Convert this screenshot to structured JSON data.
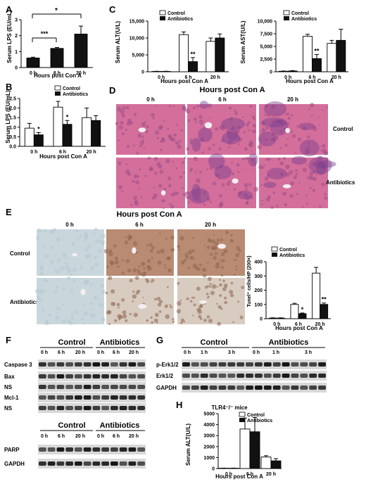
{
  "panels": {
    "A": {
      "letter": "A",
      "ylabel": "Serum LPS (EU/mL)",
      "xlabel": "Hours post Con A",
      "ticks": [
        "0",
        "1",
        "2",
        "3"
      ],
      "sig_far": "*",
      "sig_near": "***"
    },
    "B": {
      "letter": "B",
      "ylabel": "Serum LPS (EU/mL)",
      "xlabel": "Hours post Con A",
      "ticks": [
        "0.0",
        "0.5",
        "1.0",
        "1.5",
        "2.0",
        "2.5"
      ],
      "legend": [
        "Control",
        "Antibiotics"
      ]
    },
    "C1": {
      "letter": "C",
      "ylabel": "Serum ALT(U/L)",
      "xlabel": "Hours post Con A",
      "ticks": [
        "0",
        "5,000",
        "10,000",
        "15,000"
      ],
      "legend": [
        "Control",
        "Antibiotics"
      ]
    },
    "C2": {
      "ylabel": "Serum AST(U/L)",
      "xlabel": "Hours post Con A",
      "ticks": [
        "0",
        "2,500",
        "5,000",
        "7,500",
        "10,000"
      ],
      "legend": [
        "Control",
        "Antibiotics"
      ]
    },
    "D": {
      "letter": "D",
      "title": "Hours post Con A",
      "cols": [
        "0 h",
        "6 h",
        "20 h"
      ],
      "rows": [
        "Control",
        "Antibiotics"
      ]
    },
    "E": {
      "letter": "E",
      "title": "Hours post Con A",
      "cols": [
        "0 h",
        "6 h",
        "20 h"
      ],
      "rows": [
        "Control",
        "Antibiotics"
      ]
    },
    "E_chart": {
      "ylabel": "Tunel⁺ cells/HP (200×)",
      "xlabel": "Hours post Con A",
      "ticks": [
        "0",
        "100",
        "200",
        "300",
        "400"
      ],
      "legend": [
        "Control",
        "Antibiotics"
      ]
    },
    "F": {
      "letter": "F",
      "groups": [
        "Control",
        "Antibiotics"
      ],
      "times": [
        "0 h",
        "6 h",
        "20 h"
      ],
      "bands1": [
        "Caspase 3",
        "Bax",
        "NS",
        "Mcl-1",
        "NS"
      ],
      "bands2": [
        "PARP",
        "GAPDH"
      ]
    },
    "G": {
      "letter": "G",
      "groups": [
        "Control",
        "Antibiotics"
      ],
      "times": [
        "0 h",
        "1 h",
        "3 h"
      ],
      "bands": [
        "p-Erk1/2",
        "Erk1/2",
        "GAPDH"
      ]
    },
    "H": {
      "letter": "H",
      "title": "TLR4⁻/⁻ mice",
      "ylabel": "Serum ALT(U/L)",
      "xlabel": "Hours post Con A",
      "ticks": [
        "0",
        "1000",
        "2000",
        "3000",
        "4000",
        "5000"
      ],
      "legend": [
        "Control",
        "Antibiotics"
      ]
    }
  },
  "chart_data": [
    {
      "id": "A",
      "type": "bar",
      "categories": [
        "0 h",
        "6 h",
        "20 h"
      ],
      "values": [
        0.6,
        1.2,
        2.1
      ],
      "errors": [
        0.05,
        0.06,
        0.5
      ],
      "ylim": [
        0,
        3
      ]
    },
    {
      "id": "B",
      "type": "bar",
      "categories": [
        "0 h",
        "6 h",
        "20 h"
      ],
      "series": [
        {
          "name": "Control",
          "values": [
            0.95,
            2.05,
            1.5
          ],
          "errors": [
            0.25,
            0.3,
            0.5
          ]
        },
        {
          "name": "Antibiotics",
          "values": [
            0.6,
            1.15,
            1.35
          ],
          "errors": [
            0.12,
            0.2,
            0.25
          ]
        }
      ],
      "annotations": [
        "*",
        "*"
      ],
      "ylim": [
        0,
        2.5
      ]
    },
    {
      "id": "C1",
      "type": "bar",
      "categories": [
        "0 h",
        "6 h",
        "20 h"
      ],
      "series": [
        {
          "name": "Control",
          "values": [
            100,
            11000,
            9000
          ],
          "errors": [
            50,
            800,
            1000
          ]
        },
        {
          "name": "Antibiotics",
          "values": [
            100,
            3000,
            10000
          ],
          "errors": [
            50,
            1200,
            1200
          ]
        }
      ],
      "annotations": [
        "**"
      ],
      "ylim": [
        0,
        15000
      ]
    },
    {
      "id": "C2",
      "type": "bar",
      "categories": [
        "0 h",
        "6 h",
        "20 h"
      ],
      "series": [
        {
          "name": "Control",
          "values": [
            100,
            7000,
            5600
          ],
          "errors": [
            50,
            400,
            600
          ]
        },
        {
          "name": "Antibiotics",
          "values": [
            150,
            2600,
            6200
          ],
          "errors": [
            80,
            800,
            2200
          ]
        }
      ],
      "annotations": [
        "**"
      ],
      "ylim": [
        0,
        10000
      ]
    },
    {
      "id": "E_chart",
      "type": "bar",
      "categories": [
        "0 h",
        "6 h",
        "20 h"
      ],
      "series": [
        {
          "name": "Control",
          "values": [
            4,
            100,
            320
          ],
          "errors": [
            2,
            8,
            40
          ]
        },
        {
          "name": "Antibiotics",
          "values": [
            4,
            35,
            100
          ],
          "errors": [
            2,
            5,
            10
          ]
        }
      ],
      "annotations": [
        "*",
        "**"
      ],
      "ylim": [
        0,
        400
      ]
    },
    {
      "id": "H",
      "type": "bar",
      "categories": [
        "0 h",
        "6 h",
        "20 h"
      ],
      "series": [
        {
          "name": "Control",
          "values": [
            30,
            3600,
            1050
          ],
          "errors": [
            10,
            1000,
            120
          ]
        },
        {
          "name": "Antibiotics",
          "values": [
            30,
            3350,
            700
          ],
          "errors": [
            10,
            1300,
            200
          ]
        }
      ],
      "ylim": [
        0,
        5000
      ]
    }
  ],
  "colors": {
    "bar_dark": "#111111",
    "bar_light": "#ffffff",
    "he_stain": "#d46f9b",
    "he_dark": "#7a3f8f",
    "ihc_blue": "#c9d7dc",
    "ihc_brown": "#b88b72",
    "blot_bg": "#d8d8d8"
  }
}
